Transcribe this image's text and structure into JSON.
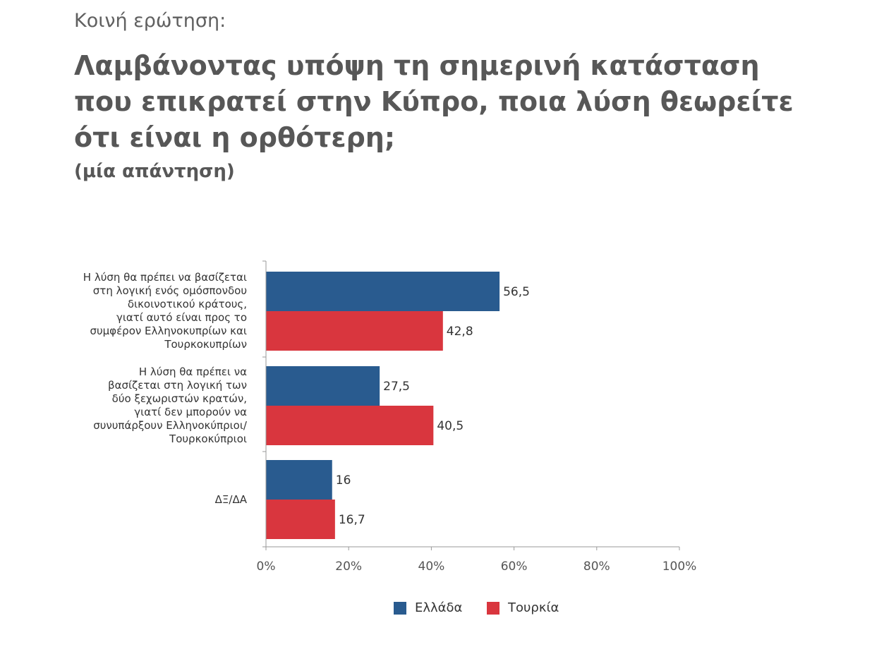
{
  "header": {
    "kicker": "Κοινή ερώτηση:",
    "title": "Λαμβάνοντας υπόψη τη σημερινή κατάσταση που επικρατεί στην Κύπρο, ποια λύση θεωρείτε ότι είναι η ορθότερη;",
    "subtitle": "(μία απάντηση)"
  },
  "chart_data": {
    "type": "bar",
    "orientation": "horizontal",
    "categories": [
      "Η λύση θα πρέπει να βασίζεται στη λογική ενός ομόσπονδου δικοινοτικού κράτους, γιατί αυτό είναι προς το συμφέρον Ελληνοκυπρίων και Τουρκοκυπρίων",
      "Η λύση θα πρέπει να βασίζεται στη λογική των δύο ξεχωριστών κρατών, γιατί δεν μπορούν να συνυπάρξουν Ελληνοκύπριοι/ Τουρκοκύπριοι",
      "ΔΞ/ΔΑ"
    ],
    "category_lines": [
      [
        "Η λύση θα πρέπει να βασίζεται",
        "στη λογική ενός ομόσπονδου",
        "δικοινοτικού κράτους,",
        "γιατί αυτό είναι προς το",
        "συμφέρον Ελληνοκυπρίων και",
        "Τουρκοκυπρίων"
      ],
      [
        "Η λύση θα πρέπει να",
        "βασίζεται στη λογική των",
        "δύο ξεχωριστών κρατών,",
        "γιατί δεν μπορούν να",
        "συνυπάρξουν Ελληνοκύπριοι/",
        "Τουρκοκύπριοι"
      ],
      [
        "ΔΞ/ΔΑ"
      ]
    ],
    "series": [
      {
        "name": "Ελλάδα",
        "color": "#295B8F",
        "values": [
          56.5,
          27.5,
          16
        ],
        "labels": [
          "56,5",
          "27,5",
          "16"
        ]
      },
      {
        "name": "Τουρκία",
        "color": "#D9363E",
        "values": [
          42.8,
          40.5,
          16.7
        ],
        "labels": [
          "42,8",
          "40,5",
          "16,7"
        ]
      }
    ],
    "xlim": [
      0,
      100
    ],
    "xticks": [
      0,
      20,
      40,
      60,
      80,
      100
    ],
    "xtick_labels": [
      "0%",
      "20%",
      "40%",
      "60%",
      "80%",
      "100%"
    ],
    "grid": false,
    "legend_position": "bottom"
  }
}
